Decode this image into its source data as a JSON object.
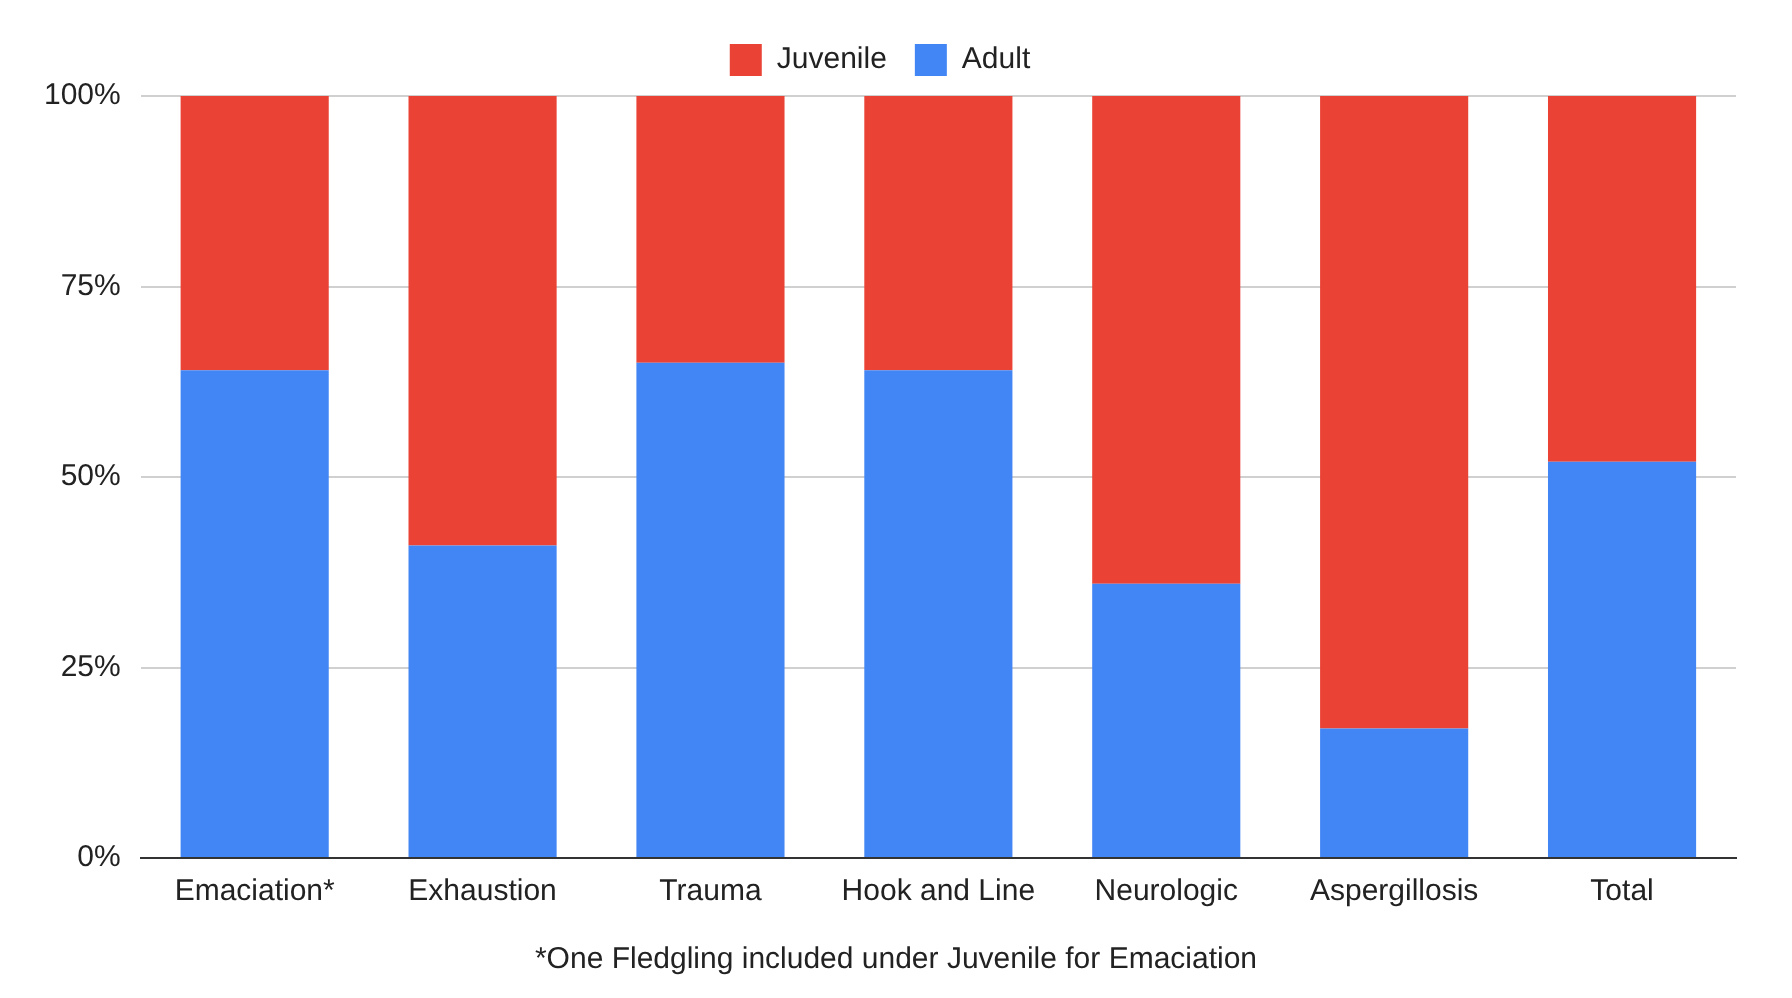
{
  "chart_data": {
    "type": "bar",
    "stacked": true,
    "categories": [
      "Emaciation*",
      "Exhaustion",
      "Trauma",
      "Hook and Line",
      "Neurologic",
      "Aspergillosis",
      "Total"
    ],
    "series": [
      {
        "name": "Adult",
        "color": "#4285f4",
        "values": [
          64,
          41,
          65,
          64,
          36,
          17,
          52
        ]
      },
      {
        "name": "Juvenile",
        "color": "#ea4335",
        "values": [
          36,
          59,
          35,
          36,
          64,
          83,
          48
        ]
      }
    ],
    "ylim": [
      0,
      100
    ],
    "yticks": [
      {
        "value": 0,
        "label": "0%"
      },
      {
        "value": 25,
        "label": "25%"
      },
      {
        "value": 50,
        "label": "50%"
      },
      {
        "value": 75,
        "label": "75%"
      },
      {
        "value": 100,
        "label": "100%"
      }
    ],
    "grid": "y",
    "legend": "top",
    "annotations": [
      "*One Fledgling included under Juvenile for Emaciation"
    ]
  }
}
